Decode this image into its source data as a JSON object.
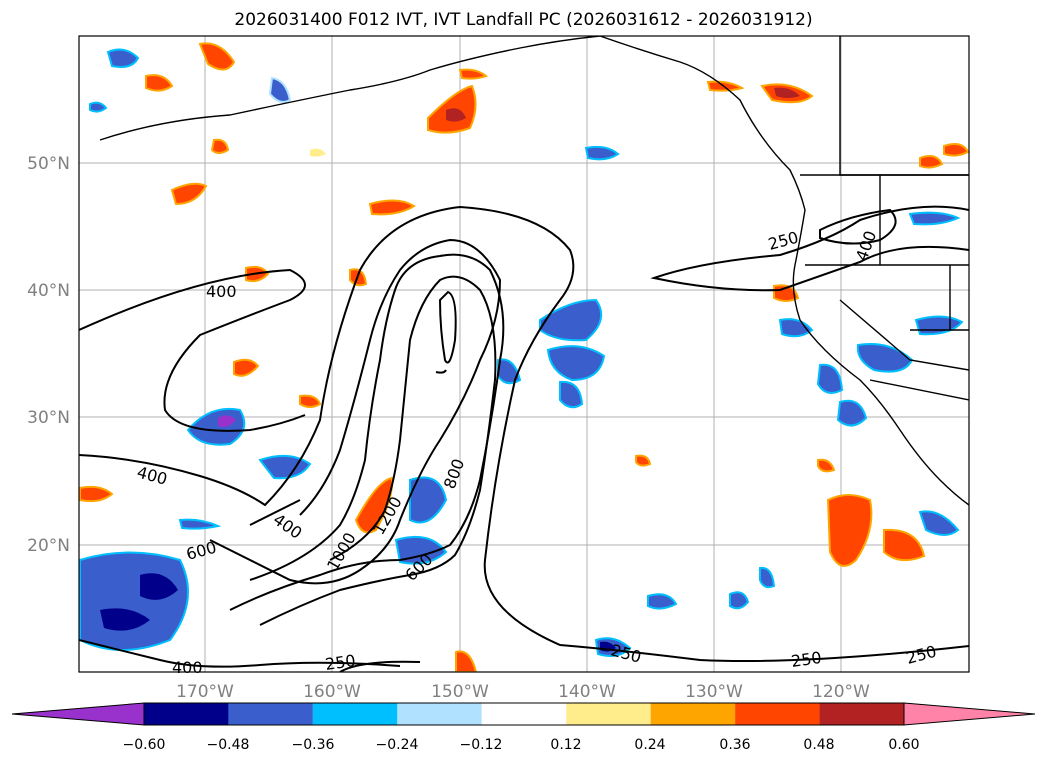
{
  "title": "2026031400 F012 IVT, IVT Landfall PC (2026031612 - 2026031912)",
  "axes": {
    "lat_ticks": [
      "50°N",
      "40°N",
      "30°N",
      "20°N"
    ],
    "lon_ticks": [
      "170°W",
      "160°W",
      "150°W",
      "140°W",
      "130°W",
      "120°W"
    ]
  },
  "contour_labels": [
    "400",
    "400",
    "400",
    "600",
    "600",
    "800",
    "1000",
    "1200",
    "250",
    "250",
    "250",
    "250",
    "250",
    "400"
  ],
  "colorbar": {
    "ticks": [
      "−0.60",
      "−0.48",
      "−0.36",
      "−0.24",
      "−0.12",
      "0.12",
      "0.24",
      "0.36",
      "0.48",
      "0.60"
    ],
    "colors": [
      "#9932cc",
      "#00008b",
      "#3a5fcd",
      "#00bfff",
      "#b0e2ff",
      "#ffffff",
      "#ffec8b",
      "#ffa500",
      "#ff4500",
      "#b22222",
      "#ff83a8"
    ]
  }
}
